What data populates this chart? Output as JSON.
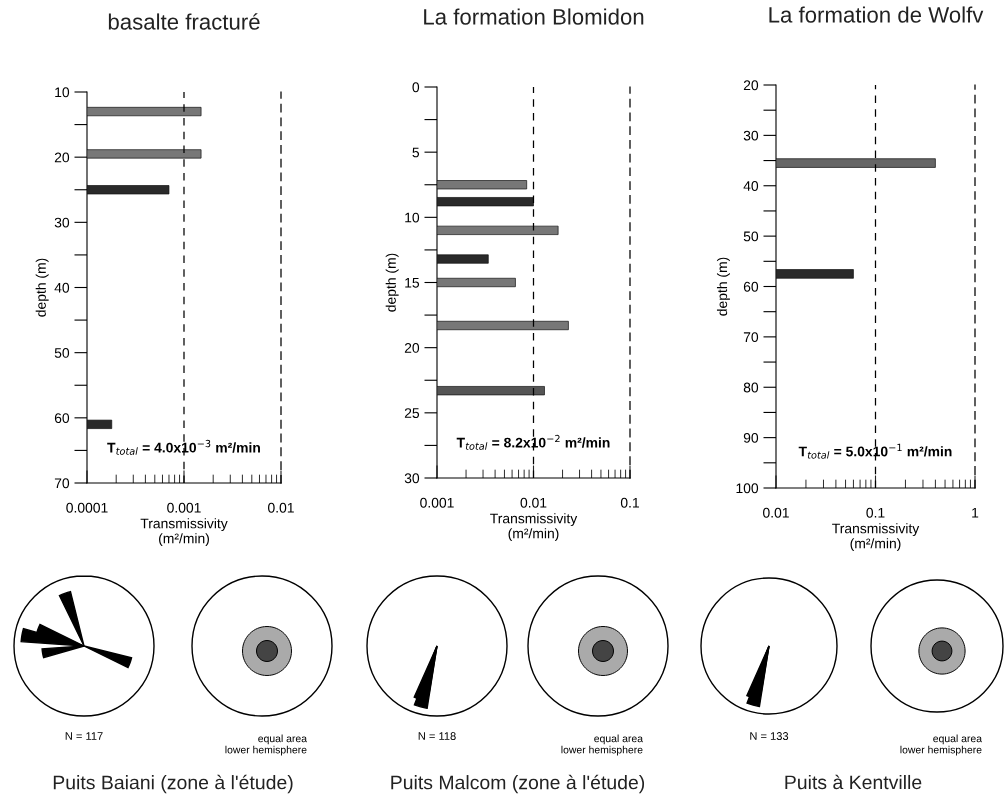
{
  "chart_data": [
    {
      "type": "bar",
      "orientation": "horizontal",
      "title": "basalte fracturé",
      "xlabel": "Transmissivity\n(m²/min)",
      "ylabel": "depth (m)",
      "log": "x",
      "x": [
        13,
        19.5,
        25,
        61
      ],
      "values": [
        0.0015,
        0.0015,
        0.0007,
        0.00018
      ],
      "colors": [
        "#777777",
        "#777777",
        "#2a2a2a",
        "#2a2a2a"
      ],
      "xlim": [
        0.0001,
        0.01
      ],
      "xticks": [
        0.0001,
        0.001,
        0.01
      ],
      "ylim": [
        70,
        10
      ],
      "yticks": [
        10,
        {
          "value": 15,
          "label": null
        },
        20,
        {
          "value": 25,
          "label": null
        },
        30,
        {
          "value": 35,
          "label": null
        },
        40,
        {
          "value": 45,
          "label": null
        },
        50,
        {
          "value": 55,
          "label": null
        },
        60,
        {
          "value": 65,
          "label": null
        },
        70
      ],
      "ref_lines": [
        {
          "axis": "x",
          "value": 0.001,
          "line_style": "dashed",
          "color": "#000000"
        }
      ],
      "annotations": [
        "T$_{total}$ = 4.0x10$^{−3}$ m²/min",
        "N = 117",
        "equal area\n   lower hemisphere",
        "Puits Baiani (zone à l'étude)"
      ]
    },
    {
      "type": "bar",
      "orientation": "horizontal",
      "title": "La formation Blomidon",
      "xlabel": "Transmissivity\n(m²/min)",
      "ylabel": "depth (m)",
      "log": "x",
      "x": [
        7.5,
        8.8,
        11,
        13.2,
        15,
        18.3,
        23.3
      ],
      "values": [
        0.0085,
        0.01,
        0.018,
        0.0034,
        0.0065,
        0.023,
        0.013
      ],
      "colors": [
        "#777777",
        "#2a2a2a",
        "#777777",
        "#2a2a2a",
        "#777777",
        "#777777",
        "#555555"
      ],
      "xlim": [
        0.001,
        0.1
      ],
      "xticks": [
        0.001,
        0.01,
        0.1
      ],
      "ylim": [
        30,
        0
      ],
      "yticks": [
        0,
        {
          "value": 2.5,
          "label": null
        },
        5,
        {
          "value": 7.5,
          "label": null
        },
        10,
        {
          "value": 12.5,
          "label": null
        },
        15,
        {
          "value": 17.5,
          "label": null
        },
        20,
        {
          "value": 22.5,
          "label": null
        },
        25,
        {
          "value": 27.5,
          "label": null
        },
        30
      ],
      "ref_lines": [
        {
          "axis": "x",
          "value": 0.01,
          "line_style": "dashed",
          "color": "#000000"
        }
      ],
      "annotations": [
        "T$_{total}$ = 8.2x10$^{−2}$ m²/min",
        "N = 118",
        "equal area\n   lower hemisphere",
        "Puits Malcom (zone à l'étude)"
      ]
    },
    {
      "type": "bar",
      "orientation": "horizontal",
      "title": "La formation de Wolfv",
      "xlabel": "Transmissivity\n(m²/min)",
      "ylabel": "depth (m)",
      "log": "x",
      "x": [
        35.5,
        57.5
      ],
      "values": [
        0.4,
        0.06
      ],
      "colors": [
        "#666666",
        "#2a2a2a"
      ],
      "xlim": [
        0.01,
        1
      ],
      "xticks": [
        0.01,
        0.1,
        1
      ],
      "ylim": [
        100,
        20
      ],
      "yticks": [
        20,
        {
          "value": 25,
          "label": null
        },
        30,
        {
          "value": 35,
          "label": null
        },
        40,
        {
          "value": 45,
          "label": null
        },
        50,
        {
          "value": 55,
          "label": null
        },
        60,
        {
          "value": 65,
          "label": null
        },
        70,
        {
          "value": 75,
          "label": null
        },
        80,
        {
          "value": 85,
          "label": null
        },
        90,
        {
          "value": 95,
          "label": null
        },
        100
      ],
      "ref_lines": [
        {
          "axis": "x",
          "value": 0.1,
          "line_style": "dashed",
          "color": "#000000"
        }
      ],
      "annotations": [
        "T$_{total}$ = 5.0x10$^{−1}$ m²/min",
        "N = 133",
        "equal area\n   lower hemisphere",
        "Puits à Kentville"
      ]
    }
  ]
}
